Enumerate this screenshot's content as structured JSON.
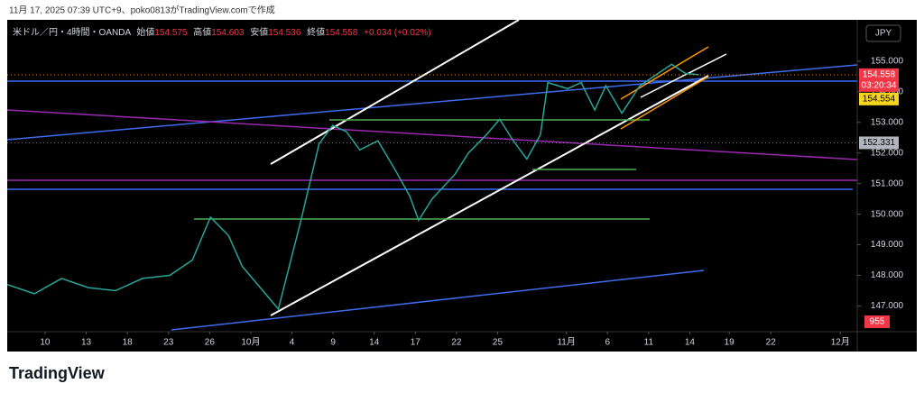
{
  "header": "11月 17, 2025 07:39 UTC+9、poko0813がTradingView.comで作成",
  "footer": {
    "brand": "TradingView"
  },
  "chart_data": {
    "type": "line",
    "legend": {
      "symbol": "米ドル／円・4時間・OANDA",
      "open_label": "始値",
      "open": 154.575,
      "high_label": "高値",
      "high": 154.603,
      "low_label": "安値",
      "low": 154.536,
      "close_label": "終値",
      "close": 154.558,
      "change": "+0.034 (+0.02%)"
    },
    "currency": "JPY",
    "countdown": "03:20:34",
    "volume_label": "955",
    "price_tags": [
      {
        "price": 154.558,
        "color": "#f23645"
      },
      {
        "price": 154.554,
        "color": "#f7d51c"
      },
      {
        "price": 152.331,
        "color": "#b2b5be"
      }
    ],
    "series": [
      {
        "name": "USDJPY",
        "color": "#26a69a",
        "x": [
          -0.92,
          -0.26,
          0.4,
          1.05,
          1.71,
          2.37,
          3.03,
          3.58,
          4.02,
          4.46,
          4.79,
          5.23,
          5.67,
          6.22,
          6.66,
          6.99,
          7.32,
          7.65,
          8.09,
          8.53,
          8.86,
          9.08,
          9.41,
          9.96,
          10.29,
          10.73,
          11.05,
          11.38,
          11.71,
          12.04,
          12.22,
          12.7,
          13.03,
          13.36,
          13.63,
          14.02,
          14.46,
          14.79,
          15.23,
          15.56,
          15.89
        ],
        "values": [
          147.7,
          147.4,
          147.9,
          147.6,
          147.5,
          147.9,
          148.0,
          148.5,
          149.9,
          149.3,
          148.3,
          147.6,
          146.9,
          149.8,
          152.3,
          152.9,
          152.7,
          152.1,
          152.4,
          151.4,
          150.6,
          149.8,
          150.5,
          151.3,
          152.0,
          152.6,
          153.1,
          152.4,
          151.8,
          152.6,
          154.3,
          154.1,
          154.3,
          153.4,
          154.2,
          153.3,
          154.2,
          154.5,
          154.9,
          154.6,
          154.558
        ]
      }
    ],
    "xlim": [
      -0.92,
      19.74
    ],
    "xticks": [
      {
        "value": 0,
        "label": "10"
      },
      {
        "value": 1,
        "label": "13"
      },
      {
        "value": 2,
        "label": "18"
      },
      {
        "value": 3,
        "label": "23"
      },
      {
        "value": 4,
        "label": "26"
      },
      {
        "value": 5,
        "label": "10月"
      },
      {
        "value": 6,
        "label": "4"
      },
      {
        "value": 7,
        "label": "9"
      },
      {
        "value": 8,
        "label": "14"
      },
      {
        "value": 9,
        "label": "17"
      },
      {
        "value": 10,
        "label": "22"
      },
      {
        "value": 11,
        "label": "25"
      },
      {
        "value": 12.67,
        "label": "11月"
      },
      {
        "value": 13.67,
        "label": "6"
      },
      {
        "value": 14.67,
        "label": "11"
      },
      {
        "value": 15.67,
        "label": "14"
      },
      {
        "value": 16.63,
        "label": "19"
      },
      {
        "value": 17.64,
        "label": "22"
      },
      {
        "value": 19.33,
        "label": "12月"
      }
    ],
    "ylim": [
      146.16,
      156.35
    ],
    "yticks": [
      {
        "value": 147,
        "label": "147.000"
      },
      {
        "value": 148,
        "label": "148.000"
      },
      {
        "value": 149,
        "label": "149.000"
      },
      {
        "value": 150,
        "label": "150.000"
      },
      {
        "value": 151,
        "label": "151.000"
      },
      {
        "value": 152,
        "label": "152.000"
      },
      {
        "value": 153,
        "label": "153.000"
      },
      {
        "value": 154,
        "label": "154.000"
      },
      {
        "value": 155,
        "label": "155.000"
      }
    ],
    "grid": false
  }
}
